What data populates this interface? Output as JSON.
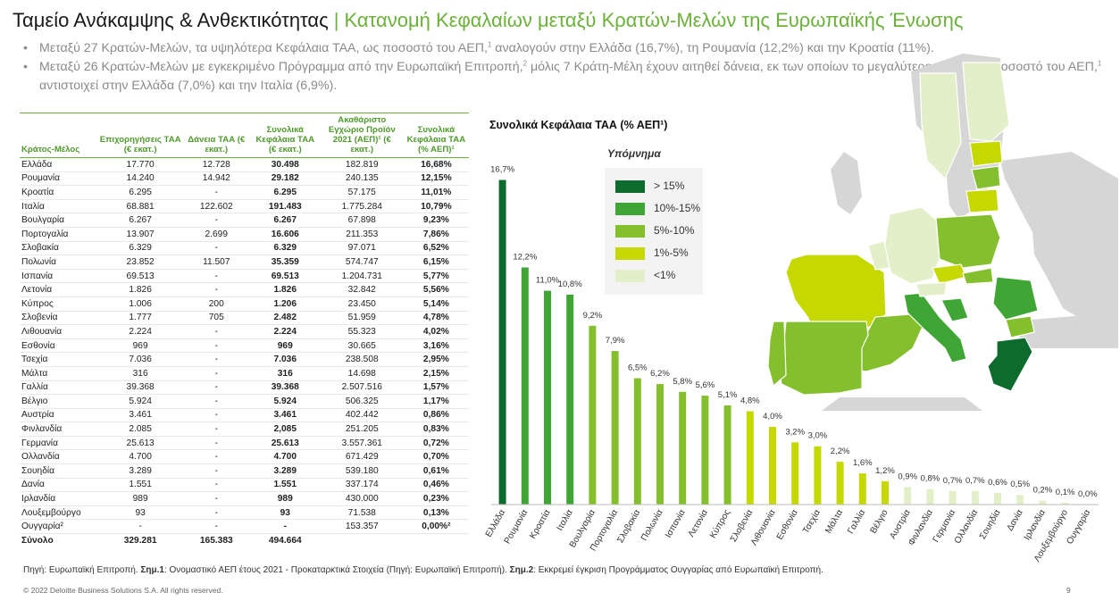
{
  "header": {
    "title_main": "Ταμείο Ανάκαμψης & Ανθεκτικότητας",
    "title_sep": "|",
    "title_sub": "Κατανομή Κεφαλαίων μεταξύ Κρατών-Μελών της Ευρωπαϊκής Ένωσης"
  },
  "bullets": [
    {
      "pre": "Μεταξύ 27 Κρατών-Μελών, τα υψηλότερα Κεφάλαια ΤΑΑ, ως ποσοστό του ΑΕΠ,",
      "sup": "1",
      "post": " αναλογούν στην Ελλάδα (16,7%), τη Ρουμανία (12,2%) και την Κροατία (11%)."
    },
    {
      "pre": "Μεταξύ 26 Κρατών-Μελών με εγκεκριμένο Πρόγραμμα από την Ευρωπαϊκή Επιτροπή,",
      "sup": "2",
      "post": " μόλις 7 Κράτη-Μέλη έχουν αιτηθεί δάνεια, εκ των οποίων το μεγαλύτερο ποσό, ως ποσοστό του ΑΕΠ,",
      "sup2": "1",
      "post2": " αντιστοιχεί στην Ελλάδα (7,0%) και την Ιταλία  (6,9%)."
    }
  ],
  "table": {
    "headers": [
      "Κράτος-Μέλος",
      "Επιχορηγήσεις ΤΑΑ (€ εκατ.)",
      "Δάνεια ΤΑΑ (€ εκατ.)",
      "Συνολικά Κεφάλαια ΤΑΑ (€ εκατ.)",
      "Ακαθάριστο Εγχώριο Προϊόν 2021 (ΑΕΠ)¹ (€ εκατ.)",
      "Συνολικά Κεφάλαια ΤΑΑ (% ΑΕΠ)¹"
    ],
    "rows": [
      [
        "Ελλάδα",
        "17.770",
        "12.728",
        "30.498",
        "182.819",
        "16,68%"
      ],
      [
        "Ρουμανία",
        "14.240",
        "14.942",
        "29.182",
        "240.135",
        "12,15%"
      ],
      [
        "Κροατία",
        "6.295",
        "-",
        "6.295",
        "57.175",
        "11,01%"
      ],
      [
        "Ιταλία",
        "68.881",
        "122.602",
        "191.483",
        "1.775.284",
        "10,79%"
      ],
      [
        "Βουλγαρία",
        "6.267",
        "-",
        "6.267",
        "67.898",
        "9,23%"
      ],
      [
        "Πορτογαλία",
        "13.907",
        "2.699",
        "16.606",
        "211.353",
        "7,86%"
      ],
      [
        "Σλοβακία",
        "6.329",
        "-",
        "6.329",
        "97.071",
        "6,52%"
      ],
      [
        "Πολωνία",
        "23.852",
        "11.507",
        "35.359",
        "574.747",
        "6,15%"
      ],
      [
        "Ισπανία",
        "69.513",
        "-",
        "69.513",
        "1.204.731",
        "5,77%"
      ],
      [
        "Λετονία",
        "1.826",
        "-",
        "1.826",
        "32.842",
        "5,56%"
      ],
      [
        "Κύπρος",
        "1.006",
        "200",
        "1.206",
        "23.450",
        "5,14%"
      ],
      [
        "Σλοβενία",
        "1.777",
        "705",
        "2.482",
        "51.959",
        "4,78%"
      ],
      [
        "Λιθουανία",
        "2.224",
        "-",
        "2.224",
        "55.323",
        "4,02%"
      ],
      [
        "Εσθονία",
        "969",
        "-",
        "969",
        "30.665",
        "3,16%"
      ],
      [
        "Τσεχία",
        "7.036",
        "-",
        "7.036",
        "238.508",
        "2,95%"
      ],
      [
        "Μάλτα",
        "316",
        "-",
        "316",
        "14.698",
        "2,15%"
      ],
      [
        "Γαλλία",
        "39.368",
        "-",
        "39.368",
        "2.507.516",
        "1,57%"
      ],
      [
        "Βέλγιο",
        "5.924",
        "-",
        "5.924",
        "506.325",
        "1,17%"
      ],
      [
        "Αυστρία",
        "3.461",
        "-",
        "3.461",
        "402.442",
        "0,86%"
      ],
      [
        "Φινλανδία",
        "2.085",
        "-",
        "2,085",
        "251.205",
        "0,83%"
      ],
      [
        "Γερμανία",
        "25.613",
        "-",
        "25.613",
        "3.557.361",
        "0,72%"
      ],
      [
        "Ολλανδία",
        "4.700",
        "-",
        "4.700",
        "671.429",
        "0,70%"
      ],
      [
        "Σουηδία",
        "3.289",
        "-",
        "3.289",
        "539.180",
        "0,61%"
      ],
      [
        "Δανία",
        "1.551",
        "-",
        "1.551",
        "337.174",
        "0,46%"
      ],
      [
        "Ιρλανδία",
        "989",
        "-",
        "989",
        "430.000",
        "0,23%"
      ],
      [
        "Λουξεμβούργο",
        "93",
        "-",
        "93",
        "71.538",
        "0,13%"
      ],
      [
        "Ουγγαρία²",
        "-",
        "-",
        "-",
        "153.357",
        "0,00%²"
      ]
    ],
    "total": [
      "Σύνολο",
      "329.281",
      "165.383",
      "494.664",
      "",
      ""
    ]
  },
  "chart_data": {
    "type": "bar",
    "title": "Συνολικά Κεφάλαια ΤΑΑ (% ΑΕΠ¹)",
    "categories": [
      "Ελλάδα",
      "Ρουμανία",
      "Κροατία",
      "Ιταλία",
      "Βουλγαρία",
      "Πορτογαλία",
      "Σλοβακία",
      "Πολωνία",
      "Ισπανία",
      "Λετονία",
      "Κύπρος",
      "Σλοβενία",
      "Λιθουανία",
      "Εσθονία",
      "Τσεχία",
      "Μάλτα",
      "Γαλλία",
      "Βέλγιο",
      "Αυστρία",
      "Φινλανδία",
      "Γερμανία",
      "Ολλανδία",
      "Σουηδία",
      "Δανία",
      "Ιρλανδία",
      "Λουξεμβούργο",
      "Ουγγαρία"
    ],
    "values": [
      16.7,
      12.2,
      11.0,
      10.8,
      9.2,
      7.9,
      6.5,
      6.2,
      5.8,
      5.6,
      5.1,
      4.8,
      4.0,
      3.2,
      3.0,
      2.2,
      1.6,
      1.2,
      0.9,
      0.8,
      0.7,
      0.7,
      0.6,
      0.5,
      0.2,
      0.1,
      0.0
    ],
    "value_labels": [
      "16,7%",
      "12,2%",
      "11,0%",
      "10,8%",
      "9,2%",
      "7,9%",
      "6,5%",
      "6,2%",
      "5,8%",
      "5,6%",
      "5,1%",
      "4,8%",
      "4,0%",
      "3,2%",
      "3,0%",
      "2,2%",
      "1,6%",
      "1,2%",
      "0,9%",
      "0,8%",
      "0,7%",
      "0,7%",
      "0,6%",
      "0,5%",
      "0,2%",
      "0,1%",
      "0,0%"
    ],
    "ylim": [
      0,
      17
    ],
    "grid": false,
    "legend": {
      "title": "Υπόμνημα",
      "items": [
        {
          "label": "> 15%",
          "color": "#0d6b2e"
        },
        {
          "label": "10%-15%",
          "color": "#3fa535"
        },
        {
          "label": "5%-10%",
          "color": "#84bf2e"
        },
        {
          "label": "1%-5%",
          "color": "#c5d800"
        },
        {
          "label": "<1%",
          "color": "#e3efc9"
        }
      ]
    }
  },
  "footer": {
    "source_label": "Πηγή: Ευρωπαϊκή Επιτροπή.",
    "note1_label": "Σημ.1",
    "note1_text": ": Ονομαστικό ΑΕΠ έτους 2021 - Προκαταρκτικά Στοιχεία (Πηγή: Ευρωπαϊκή Επιτροπή).",
    "note2_label": "Σημ.2",
    "note2_text": ": Εκκρεμεί έγκριση Προγράμματος Ουγγαρίας από Ευρωπαϊκή Επιτροπή.",
    "copyright": "© 2022 Deloitte Business Solutions S.A. All rights reserved.",
    "page_number": "9"
  }
}
